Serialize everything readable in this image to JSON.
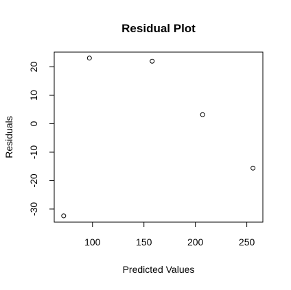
{
  "chart_data": {
    "type": "scatter",
    "title": "Residual Plot",
    "xlabel": "Predicted Values",
    "ylabel": "Residuals",
    "xlim": [
      62.8,
      265.6
    ],
    "ylim": [
      -34.6,
      25.2
    ],
    "xticks": [
      100,
      150,
      200,
      250
    ],
    "yticks": [
      -30,
      -20,
      -10,
      0,
      10,
      20
    ],
    "points": [
      {
        "x": 72,
        "y": -32.4
      },
      {
        "x": 97,
        "y": 23.1
      },
      {
        "x": 158,
        "y": 22
      },
      {
        "x": 207,
        "y": 3.2
      },
      {
        "x": 256,
        "y": -15.6
      }
    ],
    "grid": false,
    "legend": "none"
  }
}
